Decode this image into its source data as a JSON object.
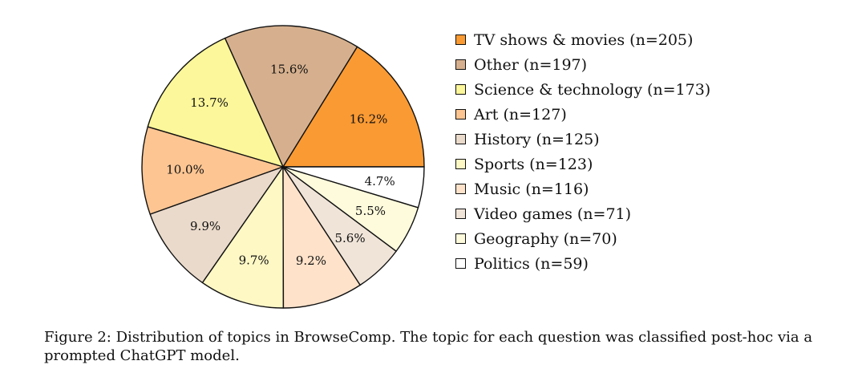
{
  "chart_data": {
    "type": "pie",
    "slices": [
      {
        "legend": "TV shows & movies (n=205)",
        "value": 205,
        "percent_label": "16.2%",
        "color": "#FA9A33"
      },
      {
        "legend": "Other (n=197)",
        "value": 197,
        "percent_label": "15.6%",
        "color": "#D6B08E"
      },
      {
        "legend": "Science & technology (n=173)",
        "value": 173,
        "percent_label": "13.7%",
        "color": "#FCF79A"
      },
      {
        "legend": "Art (n=127)",
        "value": 127,
        "percent_label": "10.0%",
        "color": "#FCC592"
      },
      {
        "legend": "History (n=125)",
        "value": 125,
        "percent_label": "9.9%",
        "color": "#EADACB"
      },
      {
        "legend": "Sports (n=123)",
        "value": 123,
        "percent_label": "9.7%",
        "color": "#FEF8C5"
      },
      {
        "legend": "Music (n=116)",
        "value": 116,
        "percent_label": "9.2%",
        "color": "#FEE2CA"
      },
      {
        "legend": "Video games (n=71)",
        "value": 71,
        "percent_label": "5.6%",
        "color": "#F0E4D8"
      },
      {
        "legend": "Geography (n=70)",
        "value": 70,
        "percent_label": "5.5%",
        "color": "#FEFBDC"
      },
      {
        "legend": "Politics (n=59)",
        "value": 59,
        "percent_label": "4.7%",
        "color": "#FFFFFF"
      }
    ],
    "legend_position": "right"
  },
  "caption": "Figure 2: Distribution of topics in BrowseComp. The topic for each question was classified post-hoc via a prompted ChatGPT model."
}
